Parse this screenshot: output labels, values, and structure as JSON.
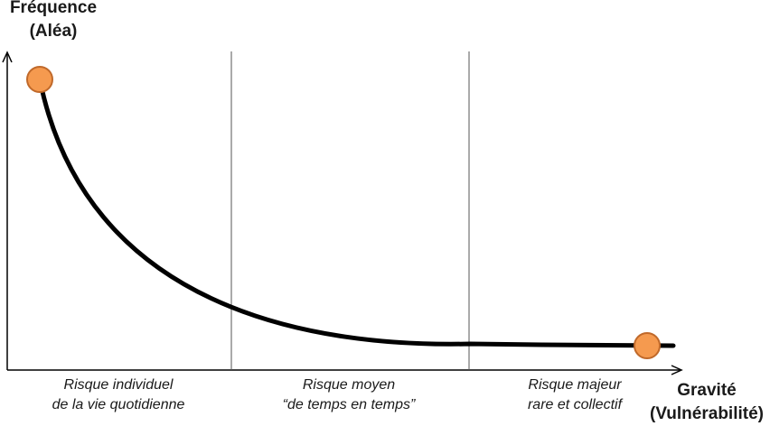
{
  "axes": {
    "y_title_line1": "Fréquence",
    "y_title_line2": "(Aléa)",
    "x_title_line1": "Gravité",
    "x_title_line2": "(Vulnérabilité)"
  },
  "zones": [
    {
      "line1": "Risque individuel",
      "line2": "de la vie quotidienne"
    },
    {
      "line1": "Risque moyen",
      "line2": "“de temps en temps”"
    },
    {
      "line1": "Risque majeur",
      "line2": "rare et collectif"
    }
  ],
  "colors": {
    "curve": "#000000",
    "axis": "#000000",
    "divider": "#555555",
    "marker_fill": "#f59a4f",
    "marker_stroke": "#c0692a"
  }
}
